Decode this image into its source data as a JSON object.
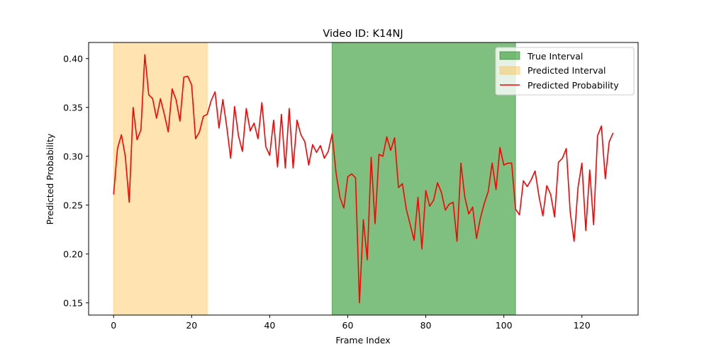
{
  "chart_data": {
    "type": "line",
    "title": "Video ID: K14NJ",
    "xlabel": "Frame Index",
    "ylabel": "Predicted Probability",
    "xlim": [
      -6.4,
      134.4
    ],
    "ylim": [
      0.1375,
      0.4165
    ],
    "xticks": [
      0,
      20,
      40,
      60,
      80,
      100,
      120
    ],
    "yticks": [
      0.15,
      0.2,
      0.25,
      0.3,
      0.35,
      0.4
    ],
    "ytick_labels": [
      "0.15",
      "0.20",
      "0.25",
      "0.30",
      "0.35",
      "0.40"
    ],
    "true_interval": [
      56,
      103
    ],
    "predicted_interval": [
      0,
      24
    ],
    "legend": {
      "position": "upper right",
      "true_interval": "True Interval",
      "predicted_interval": "Predicted Interval",
      "predicted_probability": "Predicted Probability"
    },
    "colors": {
      "line": "#ff0000",
      "true_interval": "#008000",
      "predicted_interval": "#ffa500"
    },
    "series": [
      {
        "name": "Predicted Probability",
        "values": [
          0.261,
          0.308,
          0.322,
          0.3,
          0.253,
          0.35,
          0.317,
          0.327,
          0.404,
          0.363,
          0.359,
          0.339,
          0.359,
          0.343,
          0.325,
          0.369,
          0.358,
          0.336,
          0.381,
          0.382,
          0.373,
          0.318,
          0.325,
          0.341,
          0.343,
          0.357,
          0.366,
          0.329,
          0.358,
          0.33,
          0.298,
          0.351,
          0.321,
          0.305,
          0.349,
          0.326,
          0.334,
          0.318,
          0.355,
          0.31,
          0.301,
          0.337,
          0.289,
          0.343,
          0.288,
          0.349,
          0.288,
          0.337,
          0.322,
          0.315,
          0.291,
          0.312,
          0.304,
          0.311,
          0.298,
          0.305,
          0.323,
          0.283,
          0.258,
          0.247,
          0.279,
          0.282,
          0.278,
          0.15,
          0.235,
          0.194,
          0.299,
          0.231,
          0.302,
          0.3,
          0.32,
          0.306,
          0.319,
          0.268,
          0.272,
          0.246,
          0.23,
          0.214,
          0.258,
          0.205,
          0.265,
          0.249,
          0.255,
          0.273,
          0.263,
          0.245,
          0.251,
          0.253,
          0.213,
          0.293,
          0.258,
          0.241,
          0.248,
          0.216,
          0.237,
          0.252,
          0.264,
          0.293,
          0.266,
          0.309,
          0.291,
          0.293,
          0.293,
          0.246,
          0.24,
          0.275,
          0.269,
          0.276,
          0.285,
          0.259,
          0.239,
          0.27,
          0.261,
          0.238,
          0.294,
          0.298,
          0.308,
          0.243,
          0.213,
          0.268,
          0.293,
          0.224,
          0.286,
          0.23,
          0.321,
          0.331,
          0.277,
          0.315,
          0.324
        ]
      }
    ]
  }
}
